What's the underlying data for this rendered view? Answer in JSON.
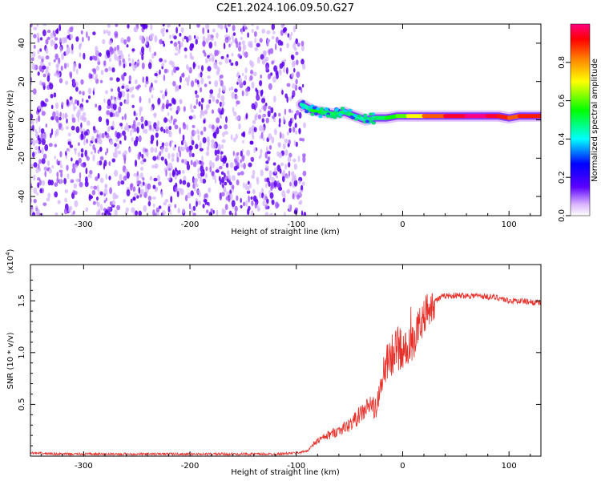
{
  "title": "C2E1.2024.106.09.50.G27",
  "chart_data": [
    {
      "type": "heatmap",
      "xlabel": "Height of straight line (km)",
      "ylabel": "Frequency (Hz)",
      "xlim": [
        -350,
        130
      ],
      "ylim": [
        -50,
        50
      ],
      "x_ticks": [
        -300,
        -200,
        -100,
        0,
        100
      ],
      "y_ticks": [
        -40,
        -20,
        0,
        20,
        40
      ],
      "colorbar": {
        "label": "Normalized spectral amplitude",
        "range": [
          0,
          1
        ],
        "ticks": [
          "0.0",
          "0.2",
          "0.4",
          "0.6",
          "0.8"
        ]
      },
      "noise_region_x": [
        -350,
        -92
      ],
      "signal_ridge": {
        "x": [
          -95,
          -85,
          -75,
          -65,
          -55,
          -45,
          -35,
          -25,
          -15,
          -5,
          5,
          20,
          40,
          60,
          80,
          90,
          100,
          110,
          130
        ],
        "freq": [
          8,
          5,
          4,
          3,
          4,
          2,
          0,
          1,
          1,
          2,
          2,
          2,
          2,
          2,
          2,
          2,
          1,
          2,
          2
        ],
        "amplitude": [
          0.45,
          0.55,
          0.5,
          0.5,
          0.5,
          0.45,
          0.45,
          0.5,
          0.55,
          0.6,
          0.7,
          0.85,
          0.95,
          1.0,
          0.95,
          0.9,
          0.85,
          0.9,
          0.9
        ]
      }
    },
    {
      "type": "line",
      "xlabel": "Height of straight line (km)",
      "ylabel": "SNR (10 * v/v)",
      "y_scale_label": "(x10",
      "y_scale_exp": "4",
      "y_scale_close": ")",
      "xlim": [
        -350,
        130
      ],
      "ylim": [
        0,
        1.85
      ],
      "x_ticks": [
        -300,
        -200,
        -100,
        0,
        100
      ],
      "y_ticks": [
        0.5,
        1.0,
        1.5
      ],
      "color": "#e8302a",
      "series": [
        {
          "x": [
            -350,
            -320,
            -280,
            -240,
            -200,
            -160,
            -120,
            -100,
            -90,
            -80,
            -70,
            -60,
            -50,
            -40,
            -35,
            -30,
            -25,
            -20,
            -15,
            -10,
            -5,
            0,
            5,
            10,
            15,
            20,
            25,
            30,
            40,
            50,
            60,
            70,
            80,
            90,
            100,
            110,
            120,
            130
          ],
          "y": [
            0.03,
            0.02,
            0.02,
            0.02,
            0.02,
            0.02,
            0.02,
            0.03,
            0.05,
            0.15,
            0.2,
            0.25,
            0.3,
            0.4,
            0.45,
            0.5,
            0.45,
            0.7,
            0.9,
            1.0,
            1.05,
            1.0,
            1.05,
            1.1,
            1.25,
            1.35,
            1.45,
            1.5,
            1.55,
            1.55,
            1.55,
            1.55,
            1.54,
            1.53,
            1.5,
            1.5,
            1.49,
            1.48
          ]
        }
      ]
    }
  ]
}
